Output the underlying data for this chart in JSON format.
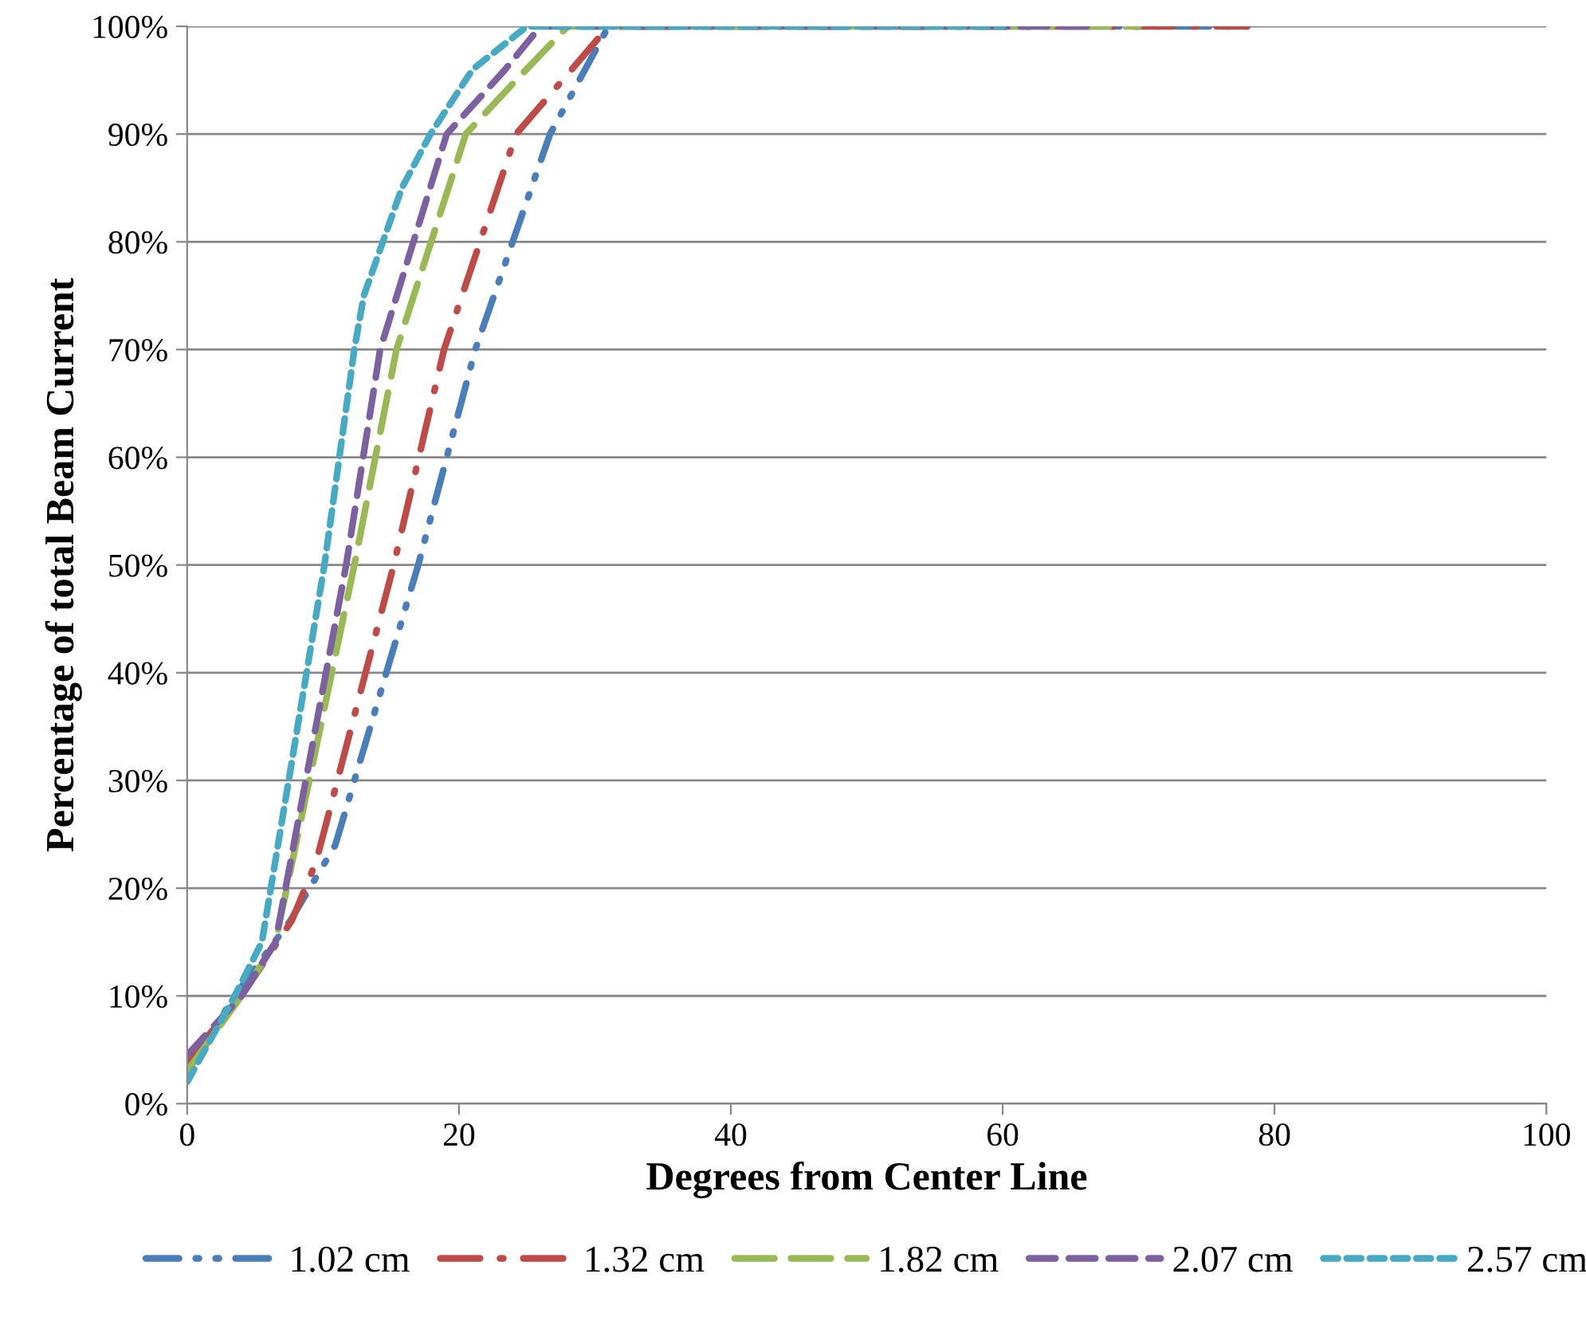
{
  "chart_data": {
    "type": "line",
    "xlabel": "Degrees from Center Line",
    "ylabel": "Percentage of total Beam Current",
    "xlim": [
      0,
      100
    ],
    "xticks": [
      0,
      20,
      40,
      60,
      80,
      100
    ],
    "ylim": [
      0,
      100
    ],
    "yticks": [
      {
        "value": 0,
        "label": "0%"
      },
      {
        "value": 10,
        "label": "10%"
      },
      {
        "value": 20,
        "label": "20%"
      },
      {
        "value": 30,
        "label": "30%"
      },
      {
        "value": 40,
        "label": "40%"
      },
      {
        "value": 50,
        "label": "50%"
      },
      {
        "value": 60,
        "label": "60%"
      },
      {
        "value": 70,
        "label": "70%"
      },
      {
        "value": 80,
        "label": "80%"
      },
      {
        "value": 90,
        "label": "90%"
      },
      {
        "value": 100,
        "label": "100%"
      }
    ],
    "grid": "y",
    "legend": "bottom",
    "marker": "none",
    "series": [
      {
        "name": "1.02 cm",
        "color": "#4a7ebb",
        "line_style": "dashdotdot",
        "x": [
          0,
          3.5,
          7.6,
          10.9,
          17,
          21.2,
          26.7,
          31,
          78
        ],
        "values": [
          3,
          10,
          17,
          24,
          50,
          70,
          90,
          100,
          100
        ]
      },
      {
        "name": "1.32 cm",
        "color": "#be4b48",
        "line_style": "longdashdot",
        "x": [
          0,
          4,
          7.7,
          9.5,
          15.2,
          18.9,
          24.2,
          28.3,
          31,
          78
        ],
        "values": [
          4,
          10,
          17,
          22.5,
          50,
          70,
          90,
          96,
          100,
          100
        ]
      },
      {
        "name": "1.82 cm",
        "color": "#98b954",
        "line_style": "longdash",
        "x": [
          0,
          4,
          6.5,
          12.3,
          15.4,
          20.5,
          24.2,
          28,
          70
        ],
        "values": [
          3,
          10,
          15,
          50,
          70,
          90,
          95,
          100,
          100
        ]
      },
      {
        "name": "2.07 cm",
        "color": "#7d60a0",
        "line_style": "dashed",
        "x": [
          0,
          4,
          6.5,
          11.7,
          14.2,
          19.1,
          23.4,
          26,
          67
        ],
        "values": [
          4.5,
          10,
          15,
          50,
          70,
          90,
          96,
          100,
          100
        ]
      },
      {
        "name": "2.57 cm",
        "color": "#46aac5",
        "line_style": "shortdash",
        "x": [
          0,
          3.5,
          5.5,
          10.1,
          12.3,
          13,
          14.4,
          15.8,
          17.9,
          21,
          25,
          60
        ],
        "values": [
          2,
          10,
          15,
          50,
          70,
          75,
          80,
          85,
          90,
          96,
          100,
          100
        ]
      }
    ]
  }
}
